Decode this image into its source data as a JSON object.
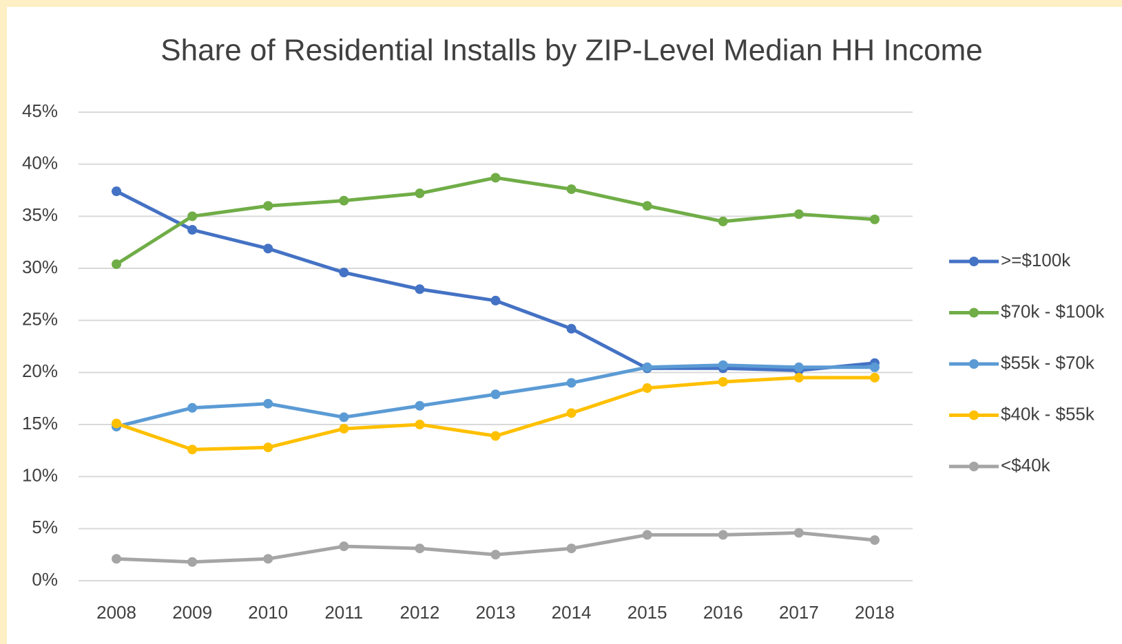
{
  "chart_data": {
    "type": "line",
    "title": "Share of Residential Installs by ZIP-Level Median HH Income",
    "categories": [
      "2008",
      "2009",
      "2010",
      "2011",
      "2012",
      "2013",
      "2014",
      "2015",
      "2016",
      "2017",
      "2018"
    ],
    "series": [
      {
        "name": ">=$100k",
        "color": "#4472c4",
        "values": [
          37.4,
          33.7,
          31.9,
          29.6,
          28.0,
          26.9,
          24.2,
          20.4,
          20.4,
          20.2,
          20.9
        ]
      },
      {
        "name": "$70k - $100k",
        "color": "#70ad47",
        "values": [
          30.4,
          35.0,
          36.0,
          36.5,
          37.2,
          38.7,
          37.6,
          36.0,
          34.5,
          35.2,
          34.7
        ]
      },
      {
        "name": "$55k - $70k",
        "color": "#5b9bd5",
        "values": [
          14.8,
          16.6,
          17.0,
          15.7,
          16.8,
          17.9,
          19.0,
          20.5,
          20.7,
          20.5,
          20.5
        ]
      },
      {
        "name": "$40k - $55k",
        "color": "#ffc000",
        "values": [
          15.1,
          12.6,
          12.8,
          14.6,
          15.0,
          13.9,
          16.1,
          18.5,
          19.1,
          19.5,
          19.5
        ]
      },
      {
        "name": "<$40k",
        "color": "#a5a5a5",
        "values": [
          2.1,
          1.8,
          2.1,
          3.3,
          3.1,
          2.5,
          3.1,
          4.4,
          4.4,
          4.6,
          3.9
        ]
      }
    ],
    "ylim": [
      0,
      45
    ],
    "yticks": [
      {
        "value": 0,
        "label": "0%"
      },
      {
        "value": 5,
        "label": "5%"
      },
      {
        "value": 10,
        "label": "10%"
      },
      {
        "value": 15,
        "label": "15%"
      },
      {
        "value": 20,
        "label": "20%"
      },
      {
        "value": 25,
        "label": "25%"
      },
      {
        "value": 30,
        "label": "30%"
      },
      {
        "value": 35,
        "label": "35%"
      },
      {
        "value": 40,
        "label": "40%"
      },
      {
        "value": 45,
        "label": "45%"
      }
    ],
    "grid": true,
    "legend": "right"
  }
}
